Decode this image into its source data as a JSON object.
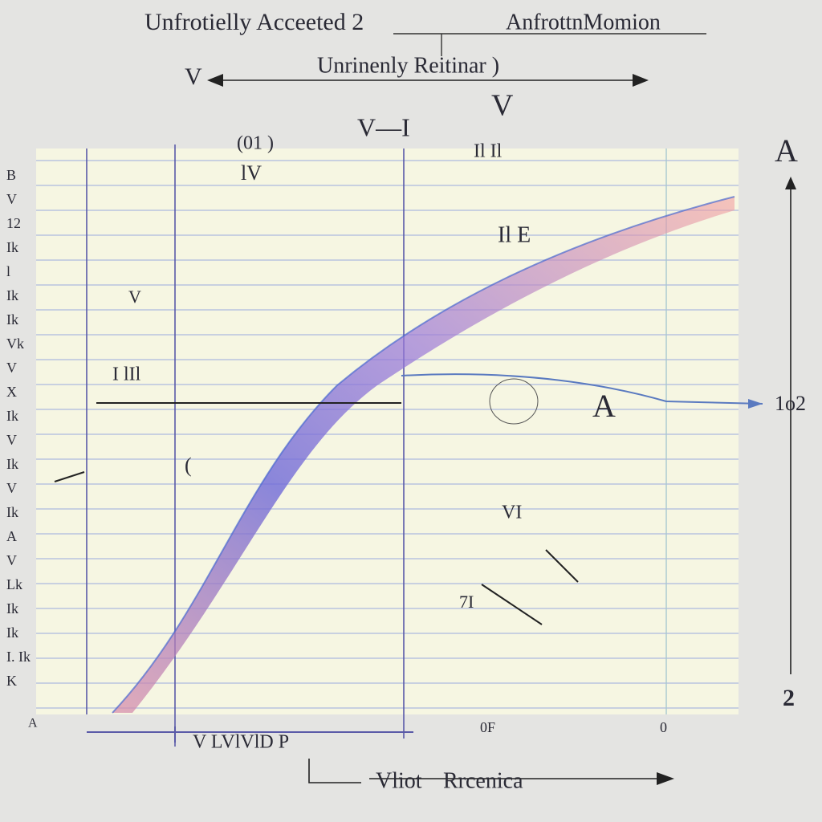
{
  "header": {
    "title_left": "Unfrotielly Acceeted 2",
    "title_right": "AnfrottnMomion",
    "subtitle": "Unrinenly Reitinar )"
  },
  "arrows": {
    "left_label": "V",
    "top_label": "V",
    "mid_label": "V—I",
    "right_top": "A",
    "right_bottom": "2"
  },
  "annotations": [
    "(01 )",
    "lV",
    "Il Il",
    "Il E",
    "I lIl",
    "VI",
    "A",
    "1o2",
    "7I",
    "(",
    "V"
  ],
  "left_marks": [
    "B",
    "V",
    "12",
    "Ik",
    "l",
    "Ik",
    "Ik",
    "Vk",
    "V",
    "X",
    "Ik",
    "V",
    "Ik",
    "V",
    "Ik",
    "A",
    "V",
    "Lk",
    "Ik",
    "Ik",
    "I. Ik",
    "K"
  ],
  "bottom": {
    "corner": "A",
    "mid": "0F",
    "right": "0",
    "small": "V LVlVlD P",
    "axis_left": "Vliot",
    "axis_right": "Rrcenica"
  }
}
